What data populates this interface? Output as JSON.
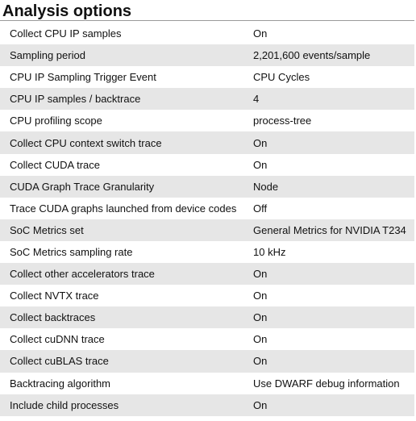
{
  "section": {
    "title": "Analysis options"
  },
  "rows": [
    {
      "key": "Collect CPU IP samples",
      "value": "On"
    },
    {
      "key": "Sampling period",
      "value": "2,201,600 events/sample"
    },
    {
      "key": "CPU IP Sampling Trigger Event",
      "value": "CPU Cycles"
    },
    {
      "key": "CPU IP samples / backtrace",
      "value": "4"
    },
    {
      "key": "CPU profiling scope",
      "value": "process-tree"
    },
    {
      "key": "Collect CPU context switch trace",
      "value": "On"
    },
    {
      "key": "Collect CUDA trace",
      "value": "On"
    },
    {
      "key": "CUDA Graph Trace Granularity",
      "value": "Node"
    },
    {
      "key": "Trace CUDA graphs launched from device codes",
      "value": "Off"
    },
    {
      "key": "SoC Metrics set",
      "value": "General Metrics for NVIDIA T234"
    },
    {
      "key": "SoC Metrics sampling rate",
      "value": "10 kHz"
    },
    {
      "key": "Collect other accelerators trace",
      "value": "On"
    },
    {
      "key": "Collect NVTX trace",
      "value": "On"
    },
    {
      "key": "Collect backtraces",
      "value": "On"
    },
    {
      "key": "Collect cuDNN trace",
      "value": "On"
    },
    {
      "key": "Collect cuBLAS trace",
      "value": "On"
    },
    {
      "key": "Backtracing algorithm",
      "value": "Use DWARF debug information"
    },
    {
      "key": "Include child processes",
      "value": "On"
    }
  ]
}
